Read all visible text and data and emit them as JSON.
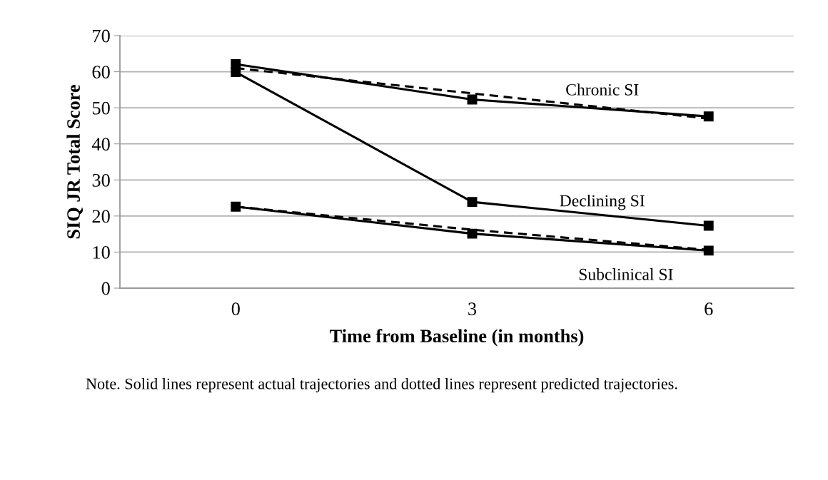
{
  "chart_data": {
    "type": "line",
    "xlabel": "Time from Baseline (in months)",
    "ylabel": "SIQ JR Total Score",
    "categories": [
      "0",
      "3",
      "6"
    ],
    "series": [
      {
        "name": "Chronic SI",
        "color": "#000000",
        "values": [
          62.1,
          52.3,
          47.6
        ],
        "marker": "square",
        "line_style": "solid"
      },
      {
        "color": "#000000",
        "values": [
          61,
          54,
          47
        ],
        "marker": "none",
        "line_style": "dashed"
      },
      {
        "name": "Declining SI",
        "color": "#000000",
        "values": [
          59.9,
          23.9,
          17.3
        ],
        "marker": "square",
        "line_style": "solid"
      },
      {
        "name": "Subclinical SI",
        "color": "#000000",
        "values": [
          22.6,
          15.1,
          10.4
        ],
        "marker": "square",
        "line_style": "solid"
      },
      {
        "color": "#000000",
        "values": [
          22.6,
          16.2,
          10.6
        ],
        "marker": "none",
        "line_style": "dashed"
      }
    ],
    "ylim": [
      0,
      70
    ],
    "yticks": [
      0,
      10,
      20,
      30,
      40,
      50,
      60,
      70
    ],
    "grid": "y",
    "legend": false,
    "annotations": [
      "Note. Solid lines represent actual trajectories and dotted lines represent predicted trajectories."
    ]
  }
}
